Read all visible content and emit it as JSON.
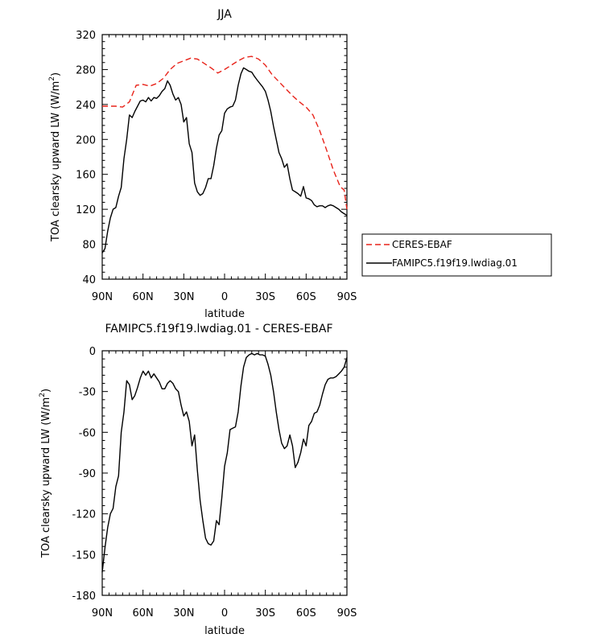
{
  "chart_data": [
    {
      "type": "line",
      "title": "JJA",
      "xlabel": "latitude",
      "ylabel": "TOA clearsky upward LW (W/m²)",
      "ylabel_parts": [
        "TOA clearsky upward LW (W/m",
        "2",
        ")"
      ],
      "xlim": [
        90,
        -90
      ],
      "ylim": [
        40,
        320
      ],
      "xticks": [
        90,
        60,
        30,
        0,
        -30,
        -60,
        -90
      ],
      "xtick_labels": [
        "90N",
        "60N",
        "30N",
        "0",
        "30S",
        "60S",
        "90S"
      ],
      "yticks": [
        40,
        80,
        120,
        160,
        200,
        240,
        280,
        320
      ],
      "ytick_labels": [
        "40",
        "80",
        "120",
        "160",
        "200",
        "240",
        "280",
        "320"
      ],
      "legend": [
        "CERES-EBAF",
        "FAMIPC5.f19f19.lwdiag.01"
      ],
      "series": [
        {
          "name": "CERES-EBAF",
          "color": "#e8231a",
          "style": "dashed",
          "x": [
            90,
            85,
            80,
            75,
            70,
            65,
            60,
            55,
            50,
            45,
            40,
            35,
            30,
            25,
            20,
            15,
            10,
            5,
            0,
            -5,
            -10,
            -15,
            -20,
            -25,
            -30,
            -35,
            -40,
            -45,
            -50,
            -55,
            -60,
            -65,
            -70,
            -75,
            -80,
            -85,
            -88,
            -90
          ],
          "values": [
            238,
            238,
            238,
            237,
            243,
            262,
            263,
            261,
            264,
            270,
            280,
            287,
            290,
            293,
            292,
            287,
            282,
            276,
            280,
            285,
            290,
            294,
            295,
            292,
            285,
            274,
            266,
            258,
            250,
            243,
            237,
            228,
            210,
            188,
            165,
            146,
            142,
            120
          ]
        },
        {
          "name": "FAMIPC5.f19f19.lwdiag.01",
          "color": "#000000",
          "style": "solid",
          "x": [
            90,
            88,
            86,
            84,
            82,
            80,
            78,
            76,
            74,
            72,
            70,
            68,
            66,
            64,
            62,
            60,
            58,
            56,
            54,
            52,
            50,
            48,
            46,
            44,
            42,
            40,
            38,
            36,
            34,
            32,
            30,
            28,
            26,
            24,
            22,
            20,
            18,
            16,
            14,
            12,
            10,
            8,
            6,
            4,
            2,
            0,
            -2,
            -4,
            -6,
            -8,
            -10,
            -12,
            -14,
            -16,
            -18,
            -20,
            -22,
            -24,
            -26,
            -28,
            -30,
            -32,
            -34,
            -36,
            -38,
            -40,
            -42,
            -44,
            -46,
            -48,
            -50,
            -52,
            -54,
            -56,
            -58,
            -60,
            -62,
            -64,
            -66,
            -68,
            -70,
            -72,
            -74,
            -76,
            -78,
            -80,
            -82,
            -84,
            -86,
            -88,
            -90
          ],
          "values": [
            70,
            75,
            95,
            110,
            120,
            122,
            135,
            145,
            178,
            200,
            228,
            225,
            232,
            238,
            244,
            245,
            243,
            248,
            244,
            248,
            247,
            250,
            255,
            258,
            267,
            262,
            252,
            245,
            248,
            240,
            220,
            225,
            195,
            185,
            150,
            140,
            136,
            138,
            145,
            155,
            155,
            170,
            190,
            205,
            210,
            230,
            235,
            237,
            238,
            245,
            262,
            275,
            282,
            280,
            278,
            277,
            272,
            268,
            264,
            260,
            255,
            245,
            232,
            215,
            200,
            185,
            178,
            168,
            172,
            155,
            142,
            140,
            138,
            135,
            146,
            133,
            132,
            130,
            125,
            123,
            124,
            124,
            122,
            124,
            125,
            124,
            122,
            120,
            117,
            115,
            113
          ]
        }
      ]
    },
    {
      "type": "line",
      "title": "FAMIPC5.f19f19.lwdiag.01 - CERES-EBAF",
      "xlabel": "latitude",
      "ylabel": "TOA clearsky upward LW (W/m²)",
      "ylabel_parts": [
        "TOA clearsky upward LW (W/m",
        "2",
        ")"
      ],
      "xlim": [
        90,
        -90
      ],
      "ylim": [
        -180,
        0
      ],
      "xticks": [
        90,
        60,
        30,
        0,
        -30,
        -60,
        -90
      ],
      "xtick_labels": [
        "90N",
        "60N",
        "30N",
        "0",
        "30S",
        "60S",
        "90S"
      ],
      "yticks": [
        -180,
        -150,
        -120,
        -90,
        -60,
        -30,
        0
      ],
      "ytick_labels": [
        "-180",
        "-150",
        "-120",
        "-90",
        "-60",
        "-30",
        "0"
      ],
      "series": [
        {
          "name": "FAMIPC5.f19f19.lwdiag.01 - CERES-EBAF",
          "color": "#000000",
          "style": "solid",
          "x": [
            90,
            88,
            86,
            84,
            82,
            80,
            78,
            76,
            74,
            72,
            70,
            68,
            66,
            64,
            62,
            60,
            58,
            56,
            54,
            52,
            50,
            48,
            46,
            44,
            42,
            40,
            38,
            36,
            34,
            32,
            30,
            28,
            26,
            24,
            22,
            20,
            18,
            16,
            14,
            12,
            10,
            8,
            6,
            4,
            2,
            0,
            -2,
            -4,
            -6,
            -8,
            -10,
            -12,
            -14,
            -16,
            -18,
            -20,
            -22,
            -24,
            -26,
            -28,
            -30,
            -32,
            -34,
            -36,
            -38,
            -40,
            -42,
            -44,
            -46,
            -48,
            -50,
            -52,
            -54,
            -56,
            -58,
            -60,
            -62,
            -64,
            -66,
            -68,
            -70,
            -72,
            -74,
            -76,
            -78,
            -80,
            -82,
            -84,
            -86,
            -88,
            -90
          ],
          "values": [
            -163,
            -145,
            -130,
            -120,
            -116,
            -100,
            -92,
            -60,
            -45,
            -22,
            -25,
            -36,
            -33,
            -27,
            -20,
            -15,
            -18,
            -15,
            -20,
            -17,
            -20,
            -23,
            -28,
            -28,
            -24,
            -22,
            -24,
            -28,
            -30,
            -40,
            -48,
            -45,
            -52,
            -70,
            -62,
            -88,
            -110,
            -125,
            -138,
            -142,
            -143,
            -140,
            -125,
            -128,
            -108,
            -85,
            -75,
            -58,
            -57,
            -56,
            -45,
            -26,
            -12,
            -5,
            -3,
            -2,
            -3,
            -2,
            -3,
            -3,
            -4,
            -10,
            -18,
            -30,
            -45,
            -58,
            -68,
            -72,
            -70,
            -62,
            -70,
            -86,
            -82,
            -75,
            -65,
            -70,
            -55,
            -52,
            -46,
            -45,
            -40,
            -32,
            -25,
            -21,
            -20,
            -20,
            -19,
            -17,
            -15,
            -12,
            -5
          ]
        }
      ]
    }
  ]
}
